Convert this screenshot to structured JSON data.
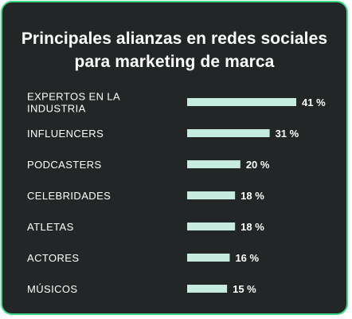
{
  "chart_data": {
    "type": "bar",
    "orientation": "horizontal",
    "title": "Principales alianzas en redes sociales para marketing de marca",
    "categories": [
      "EXPERTOS EN LA INDUSTRIA",
      "INFLUENCERS",
      "PODCASTERS",
      "CELEBRIDADES",
      "ATLETAS",
      "ACTORES",
      "MÚSICOS"
    ],
    "values": [
      41,
      31,
      20,
      18,
      18,
      16,
      15
    ],
    "value_labels": [
      "41 %",
      "31 %",
      "20 %",
      "18 %",
      "18 %",
      "16 %",
      "15 %"
    ],
    "xlim": [
      0,
      41
    ],
    "grid": false,
    "legend": "none",
    "colors": {
      "bar": "#c6ecdf",
      "background": "#232626",
      "border": "#3ddc84",
      "text": "#ffffff"
    }
  }
}
